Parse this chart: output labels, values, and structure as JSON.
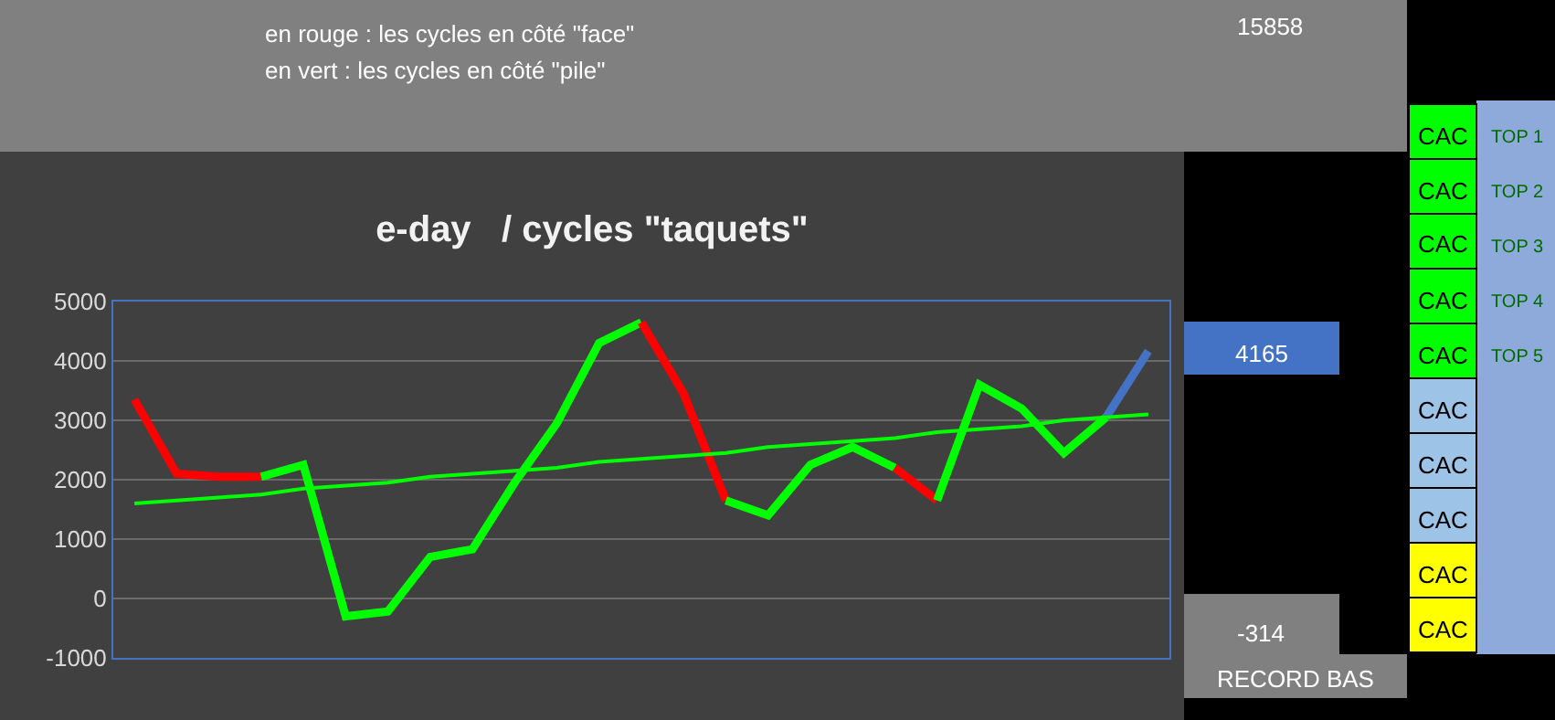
{
  "chart_data": {
    "type": "line",
    "title": "e-day   / cycles \"taquets\"",
    "categories": [
      null,
      null,
      null,
      null,
      null,
      null,
      null,
      null,
      null,
      null,
      null,
      null,
      null,
      null,
      null,
      null,
      null,
      null,
      null,
      null,
      null,
      null,
      null,
      null,
      null
    ],
    "series": [
      {
        "color": "#ff0000",
        "values": [
          3350,
          2100,
          2050,
          2050,
          null,
          null,
          null,
          null,
          null,
          null,
          null,
          null,
          null,
          null,
          null,
          null,
          null,
          null,
          null,
          null,
          null,
          null,
          null,
          null,
          null
        ]
      },
      {
        "color": "#00ff00",
        "values": [
          null,
          null,
          null,
          2050,
          2250,
          -300,
          -220,
          700,
          830,
          1950,
          2950,
          4300,
          4650,
          null,
          null,
          null,
          null,
          null,
          null,
          null,
          null,
          null,
          null,
          null,
          null
        ]
      },
      {
        "color": "#ff0000",
        "values": [
          null,
          null,
          null,
          null,
          null,
          null,
          null,
          null,
          null,
          null,
          null,
          null,
          4650,
          3450,
          1650,
          null,
          null,
          null,
          null,
          null,
          null,
          null,
          null,
          null,
          null
        ]
      },
      {
        "color": "#00ff00",
        "values": [
          null,
          null,
          null,
          null,
          null,
          null,
          null,
          null,
          null,
          null,
          null,
          null,
          null,
          null,
          1650,
          1400,
          2250,
          2550,
          2200,
          null,
          null,
          null,
          null,
          null,
          null
        ]
      },
      {
        "color": "#ff0000",
        "values": [
          null,
          null,
          null,
          null,
          null,
          null,
          null,
          null,
          null,
          null,
          null,
          null,
          null,
          null,
          null,
          null,
          null,
          null,
          2200,
          1650,
          null,
          null,
          null,
          null,
          null
        ]
      },
      {
        "color": "#00ff00",
        "values": [
          null,
          null,
          null,
          null,
          null,
          null,
          null,
          null,
          null,
          null,
          null,
          null,
          null,
          null,
          null,
          null,
          null,
          null,
          null,
          1650,
          3600,
          3200,
          2450,
          3050,
          null
        ]
      },
      {
        "color": "#4472c4",
        "values": [
          null,
          null,
          null,
          null,
          null,
          null,
          null,
          null,
          null,
          null,
          null,
          null,
          null,
          null,
          null,
          null,
          null,
          null,
          null,
          null,
          null,
          null,
          null,
          3050,
          4165
        ]
      },
      {
        "color": "#00ff00",
        "values": [
          1600,
          1650,
          1700,
          1750,
          1850,
          1900,
          1950,
          2050,
          2100,
          2150,
          2200,
          2300,
          2350,
          2400,
          2450,
          2550,
          2600,
          2650,
          2700,
          2800,
          2850,
          2900,
          3000,
          3050,
          3100
        ],
        "line_style": "solid"
      }
    ],
    "ylim": [
      -1000,
      5000
    ],
    "yticks": [
      -1000,
      0,
      1000,
      2000,
      3000,
      4000,
      5000
    ],
    "grid": "y",
    "tick_labels": "y",
    "marker": "none",
    "annotations": [
      "en rouge : les cycles en côté \"face\"",
      "en vert : les cycles en côté \"pile\"",
      "15858",
      "4165",
      "-314",
      "RECORD BAS",
      "CAC",
      "CAC",
      "CAC",
      "CAC",
      "CAC",
      "CAC",
      "CAC",
      "CAC",
      "CAC",
      "CAC",
      "TOP 1",
      "TOP 2",
      "TOP 3",
      "TOP 4",
      "TOP 5"
    ]
  }
}
